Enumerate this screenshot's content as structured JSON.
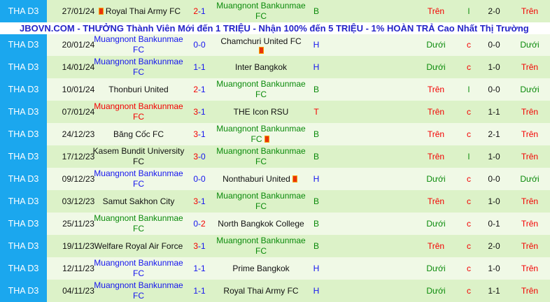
{
  "banner": {
    "text": "JBOVN.COM - THƯỞNG Thành Viên Mới đến 1 TRIỆU - Nhận 100% đến 5 TRIỆU - 1% HOÀN TRẢ Cao Nhất Thị Trường"
  },
  "colors": {
    "league_bg": "#1ba7ee",
    "row_dark": "#dcf2c8",
    "row_light": "#f0f9e6",
    "red": "#f30000",
    "blue": "#1515ef",
    "green": "#0a8a0a"
  },
  "rows": [
    {
      "league": "THA D3",
      "date": "27/01/24",
      "home": "Royal Thai Army FC",
      "home_color": "black",
      "home_card": "before",
      "score": "2-1",
      "away": "Muangnont Bankunmae FC",
      "away_color": "green",
      "result": "B",
      "result_color": "green",
      "ou": "Trên",
      "hl": "l",
      "ht": "2-0",
      "ou2": "Trên"
    },
    {
      "league": "THA D3",
      "date": "20/01/24",
      "home": "Muangnont Bankunmae FC",
      "home_color": "blue",
      "score": "0-0",
      "away": "Chamchuri United FC",
      "away_color": "black",
      "away_card": "below",
      "result": "H",
      "result_color": "blue",
      "ou": "Dưới",
      "hl": "c",
      "ht": "0-0",
      "ou2": "Dưới"
    },
    {
      "league": "THA D3",
      "date": "14/01/24",
      "home": "Muangnont Bankunmae FC",
      "home_color": "blue",
      "score": "1-1",
      "away": "Inter Bangkok",
      "away_color": "black",
      "result": "H",
      "result_color": "blue",
      "ou": "Dưới",
      "hl": "c",
      "ht": "1-0",
      "ou2": "Trên"
    },
    {
      "league": "THA D3",
      "date": "10/01/24",
      "home": "Thonburi United",
      "home_color": "black",
      "score": "2-1",
      "away": "Muangnont Bankunmae FC",
      "away_color": "green",
      "result": "B",
      "result_color": "green",
      "ou": "Trên",
      "hl": "l",
      "ht": "0-0",
      "ou2": "Dưới"
    },
    {
      "league": "THA D3",
      "date": "07/01/24",
      "home": "Muangnont Bankunmae FC",
      "home_color": "red",
      "score": "3-1",
      "away": "THE Icon RSU",
      "away_color": "black",
      "result": "T",
      "result_color": "red",
      "ou": "Trên",
      "hl": "c",
      "ht": "1-1",
      "ou2": "Trên"
    },
    {
      "league": "THA D3",
      "date": "24/12/23",
      "home": "Băng Cốc FC",
      "home_color": "black",
      "score": "3-1",
      "away": "Muangnont Bankunmae FC",
      "away_color": "green",
      "away_card": "after",
      "result": "B",
      "result_color": "green",
      "ou": "Trên",
      "hl": "c",
      "ht": "2-1",
      "ou2": "Trên"
    },
    {
      "league": "THA D3",
      "date": "17/12/23",
      "home": "Kasem Bundit University FC",
      "home_color": "black",
      "score": "3-0",
      "away": "Muangnont Bankunmae FC",
      "away_color": "green",
      "result": "B",
      "result_color": "green",
      "ou": "Trên",
      "hl": "l",
      "ht": "1-0",
      "ou2": "Trên"
    },
    {
      "league": "THA D3",
      "date": "09/12/23",
      "home": "Muangnont Bankunmae FC",
      "home_color": "blue",
      "score": "0-0",
      "away": "Nonthaburi United",
      "away_color": "black",
      "away_card": "after",
      "result": "H",
      "result_color": "blue",
      "ou": "Dưới",
      "hl": "c",
      "ht": "0-0",
      "ou2": "Dưới"
    },
    {
      "league": "THA D3",
      "date": "03/12/23",
      "home": "Samut Sakhon City",
      "home_color": "black",
      "score": "3-1",
      "away": "Muangnont Bankunmae FC",
      "away_color": "green",
      "result": "B",
      "result_color": "green",
      "ou": "Trên",
      "hl": "c",
      "ht": "1-0",
      "ou2": "Trên"
    },
    {
      "league": "THA D3",
      "date": "25/11/23",
      "home": "Muangnont Bankunmae FC",
      "home_color": "green",
      "score": "0-2",
      "away": "North Bangkok College",
      "away_color": "black",
      "result": "B",
      "result_color": "green",
      "ou": "Dưới",
      "hl": "c",
      "ht": "0-1",
      "ou2": "Trên"
    },
    {
      "league": "THA D3",
      "date": "19/11/23",
      "home": "Welfare Royal Air Force",
      "home_color": "black",
      "score": "3-1",
      "away": "Muangnont Bankunmae FC",
      "away_color": "green",
      "result": "B",
      "result_color": "green",
      "ou": "Trên",
      "hl": "c",
      "ht": "2-0",
      "ou2": "Trên"
    },
    {
      "league": "THA D3",
      "date": "12/11/23",
      "home": "Muangnont Bankunmae FC",
      "home_color": "blue",
      "score": "1-1",
      "away": "Prime Bangkok",
      "away_color": "black",
      "result": "H",
      "result_color": "blue",
      "ou": "Dưới",
      "hl": "c",
      "ht": "1-0",
      "ou2": "Trên"
    },
    {
      "league": "THA D3",
      "date": "04/11/23",
      "home": "Muangnont Bankunmae FC",
      "home_color": "blue",
      "score": "1-1",
      "away": "Royal Thai Army FC",
      "away_color": "black",
      "result": "H",
      "result_color": "blue",
      "ou": "Dưới",
      "hl": "c",
      "ht": "1-1",
      "ou2": "Trên"
    }
  ]
}
